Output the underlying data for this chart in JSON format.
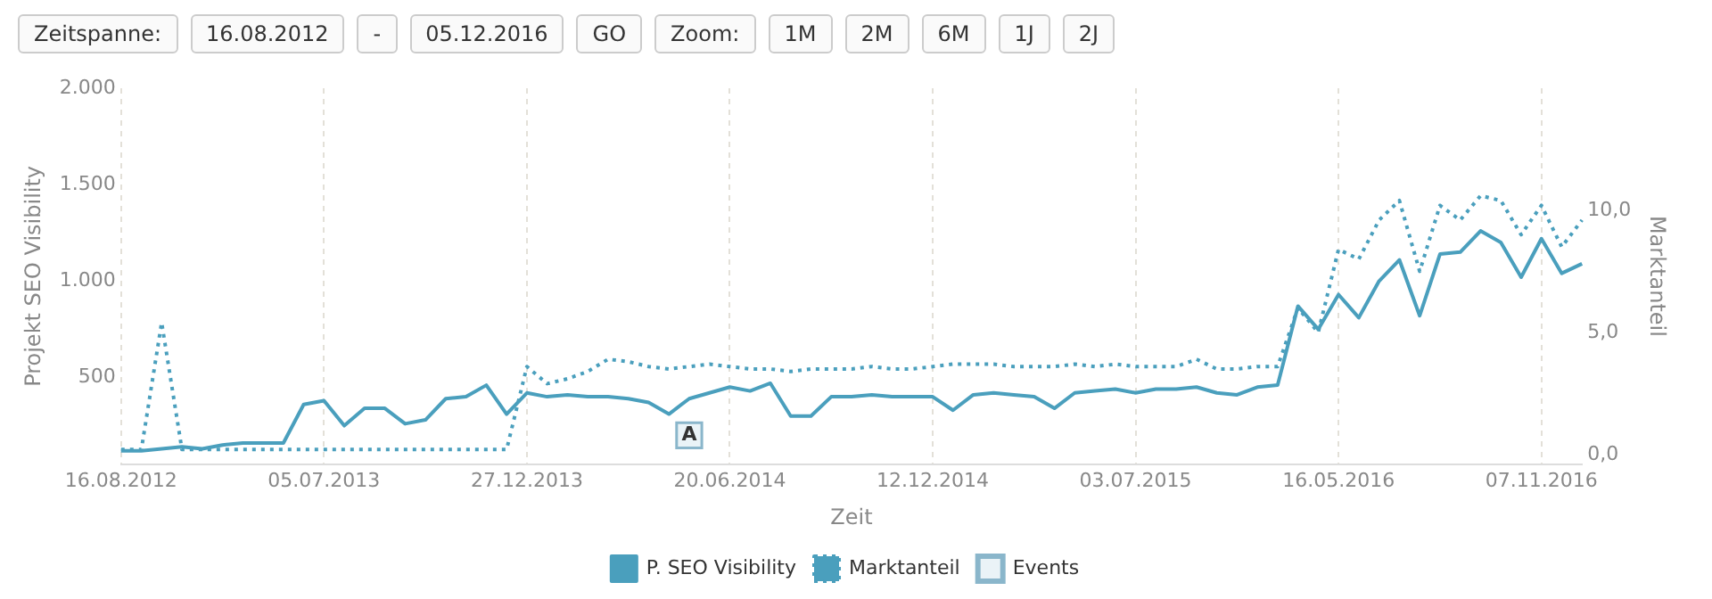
{
  "chart_data": {
    "type": "line",
    "xlabel": "Zeit",
    "ylabel": "Projekt SEO Visibility",
    "y2label": "Marktanteil",
    "annotations": [
      "Zeitspanne:",
      "16.08.2012",
      "-",
      "05.12.2016",
      "GO",
      "Zoom:",
      "1M",
      "2M",
      "6M",
      "1J",
      "2J"
    ],
    "categories": [
      "16.08.2012",
      null,
      null,
      null,
      null,
      null,
      null,
      null,
      null,
      null,
      "05.07.2013",
      null,
      null,
      null,
      null,
      null,
      null,
      null,
      null,
      null,
      "27.12.2013",
      null,
      null,
      null,
      null,
      null,
      null,
      null,
      null,
      null,
      "20.06.2014",
      null,
      null,
      null,
      null,
      null,
      null,
      null,
      null,
      null,
      "12.12.2014",
      null,
      null,
      null,
      null,
      null,
      null,
      null,
      null,
      null,
      "03.07.2015",
      null,
      null,
      null,
      null,
      null,
      null,
      null,
      null,
      null,
      "16.05.2016",
      null,
      null,
      null,
      null,
      null,
      null,
      null,
      null,
      null,
      "07.11.2016",
      null,
      null
    ],
    "series": [
      {
        "name": "P. SEO Visibility",
        "type": "line",
        "color": "#4a9fbd",
        "line_style": "solid",
        "values": [
          120,
          120,
          130,
          140,
          130,
          150,
          160,
          160,
          160,
          360,
          380,
          250,
          340,
          340,
          260,
          280,
          390,
          400,
          460,
          310,
          420,
          400,
          410,
          400,
          400,
          390,
          370,
          310,
          390,
          420,
          450,
          430,
          470,
          300,
          300,
          400,
          400,
          410,
          400,
          400,
          400,
          330,
          410,
          420,
          410,
          400,
          340,
          420,
          430,
          440,
          420,
          440,
          440,
          450,
          420,
          410,
          450,
          460,
          870,
          750,
          930,
          810,
          1000,
          1110,
          820,
          1140,
          1150,
          1260,
          1200,
          1020,
          1220,
          1040,
          1090
        ]
      },
      {
        "name": "Marktanteil",
        "type": "line",
        "axis": "y2",
        "color": "#4a9fbd",
        "line_style": "dotted",
        "values": [
          0.2,
          0.2,
          5.4,
          0.2,
          0.2,
          0.2,
          0.2,
          0.2,
          0.2,
          0.2,
          0.2,
          0.2,
          0.2,
          0.2,
          0.2,
          0.2,
          0.2,
          0.2,
          0.2,
          0.2,
          3.6,
          2.9,
          3.1,
          3.4,
          3.9,
          3.8,
          3.6,
          3.5,
          3.6,
          3.7,
          3.6,
          3.5,
          3.5,
          3.4,
          3.5,
          3.5,
          3.5,
          3.6,
          3.5,
          3.5,
          3.6,
          3.7,
          3.7,
          3.7,
          3.6,
          3.6,
          3.6,
          3.7,
          3.6,
          3.7,
          3.6,
          3.6,
          3.6,
          3.9,
          3.5,
          3.5,
          3.6,
          3.6,
          6.0,
          5.0,
          8.4,
          8.0,
          9.6,
          10.4,
          7.5,
          10.2,
          9.6,
          10.6,
          10.4,
          9.0,
          10.2,
          8.5,
          9.6
        ]
      },
      {
        "name": "Events",
        "type": "scatter",
        "marker": "square",
        "color": "#8ab6cb",
        "values": [
          null,
          null,
          null,
          null,
          null,
          null,
          null,
          null,
          null,
          null,
          null,
          null,
          null,
          null,
          null,
          null,
          null,
          null,
          null,
          null,
          null,
          null,
          null,
          null,
          null,
          null,
          null,
          null,
          200,
          null,
          null,
          null,
          null,
          null,
          null,
          null,
          null,
          null,
          null,
          null,
          null,
          null,
          null,
          null,
          null,
          null,
          null,
          null,
          null,
          null,
          null,
          null,
          null,
          null,
          null,
          null,
          null,
          null,
          null,
          null,
          null,
          null,
          null,
          null,
          null,
          null,
          null,
          null,
          null,
          null,
          null,
          null,
          null
        ],
        "value_labels": [
          null,
          null,
          null,
          null,
          null,
          null,
          null,
          null,
          null,
          null,
          null,
          null,
          null,
          null,
          null,
          null,
          null,
          null,
          null,
          null,
          null,
          null,
          null,
          null,
          null,
          null,
          null,
          null,
          "A",
          null,
          null,
          null,
          null,
          null,
          null,
          null,
          null,
          null,
          null,
          null,
          null,
          null,
          null,
          null,
          null,
          null,
          null,
          null,
          null,
          null,
          null,
          null,
          null,
          null,
          null,
          null,
          null,
          null,
          null,
          null,
          null,
          null,
          null,
          null,
          null,
          null,
          null,
          null,
          null,
          null,
          null,
          null,
          null
        ]
      }
    ],
    "ylim": [
      50,
      2000
    ],
    "yticks": [
      500,
      {
        "value": 1000,
        "label": "1.000"
      },
      {
        "value": 1500,
        "label": "1.500"
      },
      {
        "value": 2000,
        "label": "2.000"
      }
    ],
    "y2lim": [
      -0.4,
      15
    ],
    "y2ticks": [
      {
        "value": 0,
        "label": "0,0"
      },
      {
        "value": 5,
        "label": "5,0"
      },
      {
        "value": 10,
        "label": "10,0"
      }
    ],
    "grid": "x",
    "legend": "bottom"
  }
}
